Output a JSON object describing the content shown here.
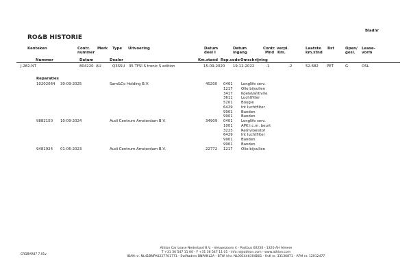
{
  "title": "RO&B HISTORIE",
  "page_label": "Bladnr",
  "headers": {
    "kenteken": "Kenteken",
    "contr_nummer": [
      "Contr.",
      "nummer"
    ],
    "merk": "Merk",
    "type": "Type",
    "uitvoering": "Uitvoering",
    "datum_deel": [
      "Datum",
      "deel I"
    ],
    "datum_ingang": [
      "Datum",
      "ingang"
    ],
    "contr_verpl": "Contr. verpl.",
    "mnd": "Mnd",
    "km": "Km.",
    "laatste_km": [
      "Laatste",
      "km.stnd"
    ],
    "bst": "Bst",
    "open_gesl": [
      "Open/",
      "gesl."
    ],
    "leasevorm": [
      "Lease-",
      "vorm"
    ]
  },
  "subheaders": {
    "nummer": "Nummer",
    "datum": "Datum",
    "dealer": "Dealer",
    "kmstand": "Km.stand",
    "repcode": "Rep.code",
    "omschrijving": "Omschrijving"
  },
  "vehicle": {
    "kenteken": "J-282-NT",
    "contract": "804220",
    "merk": "AU",
    "type": "Q3S5U",
    "uitvoering": "35 TFSI S tronic S edition",
    "datum_deel": "15-09-2020",
    "datum_ingang": "19-12-2022",
    "mnd": "-1",
    "km": "-2",
    "laatste_km": "52.682",
    "bst": "PET",
    "open_gesl": "G",
    "leasevorm": "OSL"
  },
  "reparaties_label": "Reparaties",
  "reparaties": [
    {
      "nummer": "10202064",
      "datum": "30-09-2025",
      "dealer": "Sam&Co Holding B.V.",
      "kmstand": "40200",
      "items": [
        {
          "code": "0401",
          "desc": "Longlife serv."
        },
        {
          "code": "1217",
          "desc": "Olie bijvullen"
        },
        {
          "code": "3417",
          "desc": "Koelvl/antivrie"
        },
        {
          "code": "3611",
          "desc": "Luchtfilter"
        },
        {
          "code": "5201",
          "desc": "Bougie"
        },
        {
          "code": "6429",
          "desc": "Int luchtfilter"
        },
        {
          "code": "9901",
          "desc": "Banden"
        },
        {
          "code": "9901",
          "desc": "Banden"
        }
      ]
    },
    {
      "nummer": "9882150",
      "datum": "10-09-2024",
      "dealer": "Audi Centrum Amsterdam B.V.",
      "kmstand": "34909",
      "items": [
        {
          "code": "0401",
          "desc": "Longlife serv."
        },
        {
          "code": "1001",
          "desc": "APK i.c.m. beurt"
        },
        {
          "code": "3223",
          "desc": "Remvloeistof"
        },
        {
          "code": "6429",
          "desc": "Int luchtfilter"
        },
        {
          "code": "9901",
          "desc": "Banden"
        },
        {
          "code": "9901",
          "desc": "Banden"
        }
      ]
    },
    {
      "nummer": "9481924",
      "datum": "01-06-2023",
      "dealer": "Audi Centrum Amsterdam B.V.",
      "kmstand": "22772",
      "items": [
        {
          "code": "1217",
          "desc": "Olie bijvullen"
        }
      ]
    }
  ],
  "footer": {
    "version": "CRDBAR87 7.01v",
    "line1": "Athlon Car Lease Nederland B.V. - Veluwezoom 4 - Postbus 60250 - 1320 AH  Almere",
    "line2": "T +31 36 547 11 00 - F +31 36 547 11 01 - info.nl@athlon.com - www.athlon.com",
    "line3": "IBAN nr. NL41BNPA0227701771 - Swiftadres BNPANL2A - BTW idnr. NL001446304B01 - KvK nr. 33136871 - AFM nr. 12012477"
  }
}
